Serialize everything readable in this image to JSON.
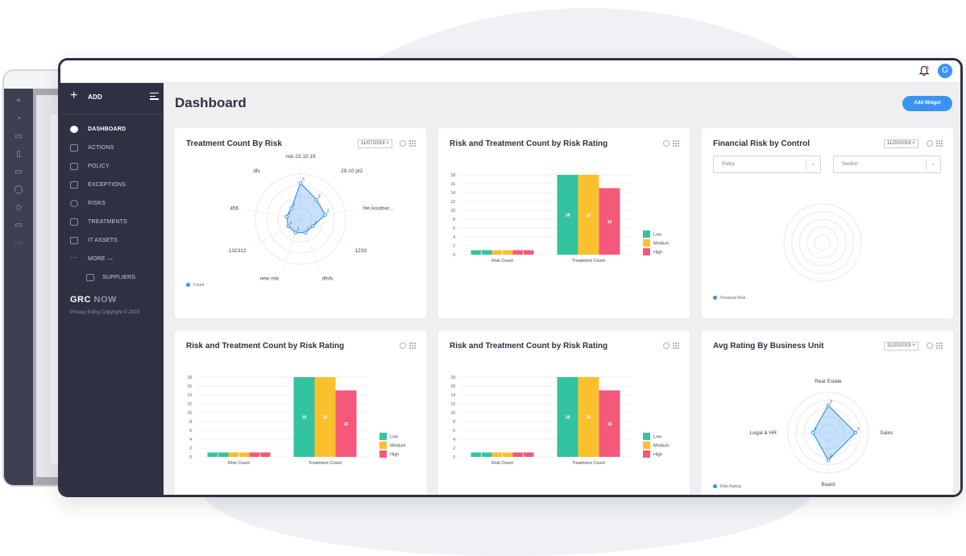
{
  "topbar": {
    "avatar_initial": "G"
  },
  "sidebar": {
    "add_label": "ADD",
    "items": [
      {
        "label": "DASHBOARD",
        "active": true
      },
      {
        "label": "ACTIONS"
      },
      {
        "label": "POLICY"
      },
      {
        "label": "EXCEPTIONS"
      },
      {
        "label": "RISKS"
      },
      {
        "label": "TREATMENTS"
      },
      {
        "label": "IT ASSETS"
      },
      {
        "label": "MORE —"
      },
      {
        "label": "SUPPLIERS",
        "sub": true
      }
    ],
    "brand_main": "GRC",
    "brand_accent": "NOW",
    "footer": "Privacy Policy Copyright © 2019"
  },
  "header": {
    "title": "Dashboard",
    "add_widget_label": "Add Widget"
  },
  "widgets": {
    "treatment_by_risk": {
      "title": "Treatment Count By Risk",
      "date": "11/07/2019",
      "legend": "Count"
    },
    "risk_rating_1": {
      "title": "Risk and Treatment Count by Risk Rating"
    },
    "financial": {
      "title": "Financial Risk by Control",
      "date": "11/20/2019",
      "policy_placeholder": "Policy",
      "section_placeholder": "Section",
      "legend": "Financial Risk"
    },
    "risk_rating_2": {
      "title": "Risk and Treatment Count by Risk Rating"
    },
    "risk_rating_3": {
      "title": "Risk and Treatment Count by Risk Rating"
    },
    "avg_rating": {
      "title": "Avg Rating By Business Unit",
      "date": "11/20/2019",
      "legend": "Risk Rating"
    }
  },
  "chart_data": [
    {
      "type": "radar",
      "title": "Treatment Count By Risk",
      "categories": [
        "risk 23.10.19",
        "29.10 pt2",
        "Yet Another...",
        "1233",
        "dfsfs",
        "new risk",
        "132312",
        "456",
        "dfs"
      ],
      "series": [
        {
          "name": "Count",
          "values": [
            3,
            2,
            2,
            1,
            1,
            1,
            1,
            1,
            1
          ]
        }
      ],
      "max": 3,
      "color": "#3b93f0"
    },
    {
      "type": "bar",
      "title": "Risk and Treatment Count by Risk Rating",
      "categories": [
        "Risk Count",
        "Treatment Count"
      ],
      "series": [
        {
          "name": "Low",
          "values": [
            1,
            18
          ],
          "color": "#34c3a0"
        },
        {
          "name": "Medium",
          "values": [
            1,
            18
          ],
          "color": "#fbc02d"
        },
        {
          "name": "High",
          "values": [
            1,
            15
          ],
          "color": "#f4587a"
        }
      ],
      "yticks": [
        0,
        2,
        4,
        6,
        8,
        10,
        12,
        14,
        16,
        18
      ],
      "ylim": [
        0,
        18
      ],
      "legend": "right"
    },
    {
      "type": "radar",
      "title": "Financial Risk by Control",
      "categories": [],
      "series": [
        {
          "name": "Financial Risk",
          "values": []
        }
      ],
      "color": "#3b93f0"
    },
    {
      "type": "bar",
      "title": "Risk and Treatment Count by Risk Rating",
      "categories": [
        "Risk Count",
        "Treatment Count"
      ],
      "series": [
        {
          "name": "Low",
          "values": [
            1,
            18
          ],
          "color": "#34c3a0"
        },
        {
          "name": "Medium",
          "values": [
            1,
            18
          ],
          "color": "#fbc02d"
        },
        {
          "name": "High",
          "values": [
            1,
            15
          ],
          "color": "#f4587a"
        }
      ],
      "yticks": [
        0,
        2,
        4,
        6,
        8,
        10,
        12,
        14,
        16,
        18
      ],
      "ylim": [
        0,
        18
      ],
      "legend": "right"
    },
    {
      "type": "bar",
      "title": "Risk and Treatment Count by Risk Rating",
      "categories": [
        "Risk Count",
        "Treatment Count"
      ],
      "series": [
        {
          "name": "Low",
          "values": [
            1,
            18
          ],
          "color": "#34c3a0"
        },
        {
          "name": "Medium",
          "values": [
            1,
            18
          ],
          "color": "#fbc02d"
        },
        {
          "name": "High",
          "values": [
            1,
            15
          ],
          "color": "#f4587a"
        }
      ],
      "yticks": [
        0,
        2,
        4,
        6,
        8,
        10,
        12,
        14,
        16,
        18
      ],
      "ylim": [
        0,
        18
      ],
      "legend": "right"
    },
    {
      "type": "radar",
      "title": "Avg Rating By Business Unit",
      "categories": [
        "Real Estate",
        "Sales",
        "Board",
        "Legal & HR"
      ],
      "series": [
        {
          "name": "Risk Rating",
          "values": [
            2,
            2,
            2,
            1
          ]
        }
      ],
      "max": 2,
      "color": "#3b93f0"
    }
  ]
}
